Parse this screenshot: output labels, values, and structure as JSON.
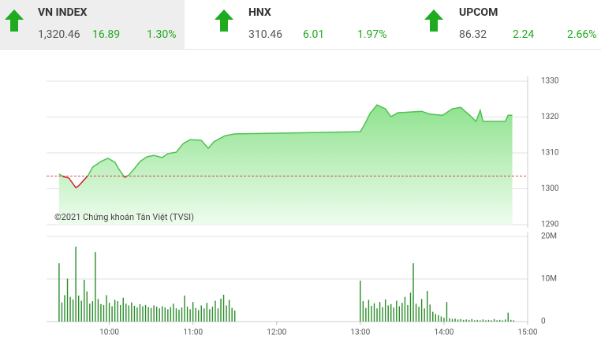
{
  "indices": [
    {
      "name": "VN INDEX",
      "value": "1,320.46",
      "change": "16.89",
      "percent": "1.30%"
    },
    {
      "name": "HNX",
      "value": "310.46",
      "change": "6.01",
      "percent": "1.97%"
    },
    {
      "name": "UPCOM",
      "value": "86.32",
      "change": "2.24",
      "percent": "2.66%"
    }
  ],
  "chart_data": [
    {
      "type": "line",
      "annotation": "©2021 Chứng khoán Tân Việt (TVSI)",
      "x": [
        564,
        567,
        571,
        576,
        578,
        581,
        585,
        588,
        594,
        599,
        604,
        607,
        611,
        614,
        618,
        622,
        627,
        632,
        638,
        642,
        648,
        653,
        658,
        666,
        671,
        675,
        683,
        690,
        780,
        783,
        787,
        792,
        798,
        802,
        807,
        816,
        824,
        830,
        839,
        846,
        852,
        859,
        863,
        866,
        868,
        884,
        886,
        889
      ],
      "series": [
        {
          "color": "#4fc24f",
          "values": [
            1304.1,
            1303.4,
            1303.0,
            1300.3,
            1300.8,
            1302.1,
            1303.8,
            1306.0,
            1307.6,
            1308.5,
            1307.4,
            1305.4,
            1303.2,
            1303.8,
            1305.6,
            1307.6,
            1308.9,
            1309.3,
            1308.7,
            1309.8,
            1310.2,
            1312.6,
            1313.7,
            1313.5,
            1311.3,
            1313.1,
            1314.8,
            1315.3,
            1315.9,
            1317.9,
            1321.0,
            1323.4,
            1322.3,
            1320.1,
            1321.2,
            1321.4,
            1321.6,
            1320.8,
            1320.5,
            1322.3,
            1322.7,
            1320.3,
            1318.8,
            1321.9,
            1318.8,
            1318.8,
            1320.5,
            1320.5
          ]
        }
      ],
      "reference_line": 1303.57,
      "reference_color": "#cc1f1f",
      "xlim": [
        555,
        900
      ],
      "ylim": [
        1290,
        1330
      ],
      "yticks": [
        1290,
        1300,
        1310,
        1320,
        1330
      ],
      "grid": true
    },
    {
      "type": "bar",
      "color": "#2a8c2a",
      "x": [
        564,
        566,
        568,
        570,
        572,
        574,
        576,
        578,
        580,
        582,
        584,
        586,
        588,
        590,
        592,
        594,
        596,
        598,
        600,
        602,
        604,
        606,
        608,
        610,
        612,
        614,
        616,
        618,
        620,
        622,
        624,
        626,
        628,
        630,
        632,
        634,
        636,
        638,
        640,
        642,
        644,
        646,
        648,
        650,
        652,
        654,
        656,
        658,
        660,
        662,
        664,
        666,
        668,
        670,
        672,
        674,
        676,
        678,
        680,
        682,
        684,
        686,
        688,
        690,
        780,
        782,
        784,
        786,
        788,
        790,
        792,
        794,
        796,
        798,
        800,
        802,
        804,
        806,
        808,
        810,
        812,
        814,
        816,
        818,
        820,
        822,
        824,
        826,
        828,
        830,
        832,
        834,
        836,
        838,
        840,
        842,
        844,
        846,
        848,
        850,
        852,
        854,
        856,
        858,
        860,
        862,
        864,
        866,
        868,
        870,
        872,
        874,
        876,
        878,
        880,
        882,
        884,
        886,
        888,
        890
      ],
      "values": [
        13.7,
        4.5,
        6.2,
        10.1,
        5.8,
        5.2,
        17.6,
        6.1,
        4.9,
        9.8,
        7.1,
        4.2,
        4.8,
        16.3,
        5.3,
        4.1,
        3.9,
        6.2,
        4.4,
        3.6,
        5.1,
        4.8,
        3.9,
        5.6,
        4.2,
        3.8,
        4.5,
        3.7,
        3.3,
        4.1,
        3.6,
        3.9,
        3.4,
        3.2,
        3.8,
        3.5,
        3.1,
        3.6,
        3.3,
        2.9,
        3.4,
        4.2,
        3.1,
        2.8,
        3.3,
        6.1,
        3.5,
        2.9,
        4.6,
        3.2,
        2.7,
        3.8,
        3.1,
        4.4,
        2.9,
        3.5,
        4.9,
        3.1,
        5.4,
        6.3,
        3.8,
        5.1,
        3.2,
        2.6,
        9.6,
        4.8,
        3.2,
        5.1,
        3.7,
        4.3,
        3.1,
        4.6,
        3.4,
        5.2,
        3.8,
        4.1,
        3.3,
        4.9,
        3.6,
        4.4,
        5.8,
        3.9,
        6.8,
        13.7,
        4.2,
        3.5,
        5.3,
        3.1,
        7.2,
        4.0,
        2.3,
        1.8,
        1.5,
        1.2,
        0.9,
        4.6,
        0.8,
        0.6,
        0.7,
        0.5,
        0.6,
        0.4,
        0.5,
        0.4,
        0.6,
        0.3,
        0.4,
        0.3,
        0.5,
        0.3,
        0.4,
        0.3,
        0.6,
        0.3,
        0.4,
        0.3,
        0.5,
        2.1,
        0.4,
        0.3
      ],
      "xlim": [
        555,
        900
      ],
      "ylim": [
        0,
        20
      ],
      "yticks": [
        0,
        {
          "value": 10,
          "label": "10M"
        },
        {
          "value": 20,
          "label": "20M"
        }
      ],
      "xticks": [
        {
          "value": 600,
          "label": "10:00"
        },
        {
          "value": 660,
          "label": "11:00"
        },
        {
          "value": 720,
          "label": "12:00"
        },
        {
          "value": 780,
          "label": "13:00"
        },
        {
          "value": 840,
          "label": "14:00"
        },
        {
          "value": 900,
          "label": "15:00"
        }
      ],
      "grid": true
    }
  ]
}
